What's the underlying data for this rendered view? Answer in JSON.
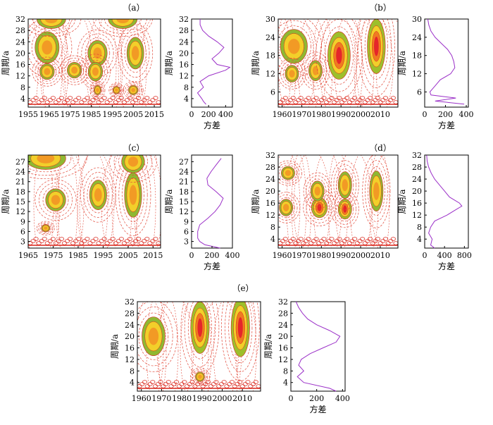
{
  "chart_data": [
    {
      "type": "contour",
      "panel_label": "（a）",
      "ylabel": "周期/a",
      "x_ticks": [
        "1955",
        "1965",
        "1975",
        "1985",
        "1995",
        "2005",
        "2015"
      ],
      "y_ticks": [
        "4",
        "8",
        "12",
        "16",
        "20",
        "24",
        "28",
        "32"
      ],
      "x_range": [
        1955,
        2018
      ],
      "y_range": [
        1,
        32
      ],
      "blobs": [
        {
          "x": 1964,
          "y": 22,
          "w": 5,
          "h": 5,
          "level": 1.5
        },
        {
          "x": 1964,
          "y": 13.5,
          "w": 3,
          "h": 2.5,
          "level": 1.5
        },
        {
          "x": 1977,
          "y": 14,
          "w": 3,
          "h": 2.5,
          "level": 1.5
        },
        {
          "x": 1988,
          "y": 20,
          "w": 4,
          "h": 4,
          "level": 1.5
        },
        {
          "x": 1987,
          "y": 13.5,
          "w": 3,
          "h": 3,
          "level": 1.5
        },
        {
          "x": 1988,
          "y": 7,
          "w": 1.5,
          "h": 1.5,
          "level": 1.5
        },
        {
          "x": 1997,
          "y": 7,
          "w": 1.5,
          "h": 1.2,
          "level": 1.5
        },
        {
          "x": 2006,
          "y": 20,
          "w": 3.5,
          "h": 5,
          "level": 1.5
        },
        {
          "x": 2005,
          "y": 7,
          "w": 2,
          "h": 1.5,
          "level": 1.5
        },
        {
          "x": 1966,
          "y": 32,
          "w": 6,
          "h": 3,
          "level": 1.5
        },
        {
          "x": 2000,
          "y": 32,
          "w": 6,
          "h": 3,
          "level": 1.5
        }
      ],
      "variance": {
        "xlabel": "方差",
        "x_ticks": [
          "0",
          "200",
          "400"
        ],
        "x_range": [
          0,
          480
        ],
        "period": [
          2,
          3,
          4,
          6,
          8,
          10,
          12,
          14,
          15,
          16,
          18,
          20,
          22,
          24,
          26,
          28,
          30,
          32
        ],
        "value": [
          170,
          140,
          120,
          70,
          140,
          100,
          200,
          400,
          450,
          300,
          240,
          320,
          380,
          300,
          200,
          130,
          100,
          100
        ]
      }
    },
    {
      "type": "contour",
      "panel_label": "（b）",
      "ylabel": "周期/a",
      "x_ticks": [
        "1960",
        "1970",
        "1980",
        "1990",
        "2000",
        "2010"
      ],
      "y_ticks": [
        "6",
        "12",
        "18",
        "24",
        "30"
      ],
      "x_range": [
        1958,
        2019
      ],
      "y_range": [
        1,
        30
      ],
      "blobs": [
        {
          "x": 1966,
          "y": 21,
          "w": 6,
          "h": 5,
          "level": 1.5
        },
        {
          "x": 1965,
          "y": 12,
          "w": 3,
          "h": 2.5,
          "level": 1.5
        },
        {
          "x": 1977,
          "y": 13,
          "w": 3,
          "h": 3,
          "level": 1.5
        },
        {
          "x": 1989,
          "y": 18,
          "w": 5,
          "h": 7,
          "level": 2.5
        },
        {
          "x": 2008,
          "y": 21,
          "w": 4,
          "h": 8,
          "level": 2.5
        }
      ],
      "variance": {
        "xlabel": "方差",
        "x_ticks": [
          "0",
          "200",
          "400"
        ],
        "x_range": [
          0,
          420
        ],
        "period": [
          2,
          3,
          4,
          5,
          6,
          8,
          10,
          12,
          14,
          16,
          18,
          20,
          22,
          24,
          26,
          28,
          30
        ],
        "value": [
          380,
          100,
          300,
          60,
          50,
          100,
          150,
          250,
          290,
          280,
          260,
          220,
          160,
          100,
          60,
          40,
          30
        ]
      }
    },
    {
      "type": "contour",
      "panel_label": "（c）",
      "ylabel": "周期/a",
      "x_ticks": [
        "1965",
        "1975",
        "1985",
        "1995",
        "2005",
        "2015"
      ],
      "y_ticks": [
        "3",
        "6",
        "9",
        "12",
        "15",
        "18",
        "21",
        "24",
        "27"
      ],
      "x_range": [
        1965,
        2018
      ],
      "y_range": [
        1,
        29
      ],
      "blobs": [
        {
          "x": 1976,
          "y": 15.5,
          "w": 3.5,
          "h": 3,
          "level": 1.5
        },
        {
          "x": 1993,
          "y": 17,
          "w": 3,
          "h": 4,
          "level": 1.5
        },
        {
          "x": 2007,
          "y": 17,
          "w": 3,
          "h": 6,
          "level": 1.5
        },
        {
          "x": 1972,
          "y": 28,
          "w": 7,
          "h": 3,
          "level": 1.5
        },
        {
          "x": 2007,
          "y": 27,
          "w": 4,
          "h": 3,
          "level": 1.5
        },
        {
          "x": 1972,
          "y": 7,
          "w": 1.5,
          "h": 1,
          "level": 1.5
        }
      ],
      "variance": {
        "xlabel": "方差",
        "x_ticks": [
          "0",
          "200",
          "400"
        ],
        "x_range": [
          0,
          400
        ],
        "period": [
          1,
          2,
          3,
          4,
          6,
          8,
          10,
          12,
          14,
          16,
          18,
          20,
          22,
          24,
          26,
          28
        ],
        "value": [
          280,
          130,
          80,
          60,
          60,
          80,
          160,
          230,
          280,
          310,
          240,
          160,
          150,
          190,
          240,
          290
        ]
      }
    },
    {
      "type": "contour",
      "panel_label": "（d）",
      "ylabel": "周期/a",
      "x_ticks": [
        "1960",
        "1970",
        "1980",
        "1990",
        "2000",
        "2010"
      ],
      "y_ticks": [
        "4",
        "8",
        "12",
        "16",
        "20",
        "24",
        "28",
        "32"
      ],
      "x_range": [
        1958,
        2019
      ],
      "y_range": [
        1,
        32
      ],
      "blobs": [
        {
          "x": 1962,
          "y": 14.5,
          "w": 3,
          "h": 2.5,
          "level": 1.5
        },
        {
          "x": 1979,
          "y": 14.5,
          "w": 3.5,
          "h": 3,
          "level": 2.5
        },
        {
          "x": 1992,
          "y": 14,
          "w": 3,
          "h": 3,
          "level": 2.5
        },
        {
          "x": 1978,
          "y": 20,
          "w": 3,
          "h": 3,
          "level": 1.5
        },
        {
          "x": 1992,
          "y": 22,
          "w": 3,
          "h": 4,
          "level": 1.5
        },
        {
          "x": 2008,
          "y": 20,
          "w": 3,
          "h": 6,
          "level": 1.5
        },
        {
          "x": 1963,
          "y": 26,
          "w": 3,
          "h": 2,
          "level": 1.5
        }
      ],
      "variance": {
        "xlabel": "方差",
        "x_ticks": [
          "0",
          "400",
          "800"
        ],
        "x_range": [
          0,
          880
        ],
        "period": [
          1,
          2,
          4,
          6,
          8,
          10,
          12,
          14,
          15,
          16,
          18,
          20,
          22,
          24,
          26,
          28,
          30,
          32
        ],
        "value": [
          200,
          120,
          150,
          80,
          120,
          200,
          450,
          650,
          750,
          700,
          500,
          400,
          300,
          200,
          130,
          80,
          50,
          40
        ]
      }
    },
    {
      "type": "contour",
      "panel_label": "（e）",
      "ylabel": "周期/a",
      "x_ticks": [
        "1960",
        "1970",
        "1980",
        "1990",
        "2000",
        "2010"
      ],
      "y_ticks": [
        "4",
        "8",
        "12",
        "16",
        "20",
        "24",
        "28",
        "32"
      ],
      "x_range": [
        1958,
        2019
      ],
      "y_range": [
        1,
        32
      ],
      "blobs": [
        {
          "x": 1966,
          "y": 20,
          "w": 5,
          "h": 6,
          "level": 1.5
        },
        {
          "x": 1989,
          "y": 23,
          "w": 4,
          "h": 8,
          "level": 2.5
        },
        {
          "x": 2009,
          "y": 23,
          "w": 4,
          "h": 9,
          "level": 2.5
        },
        {
          "x": 1989,
          "y": 6,
          "w": 2,
          "h": 1.5,
          "level": 1.5
        }
      ],
      "variance": {
        "xlabel": "方差",
        "x_ticks": [
          "0",
          "200",
          "400"
        ],
        "x_range": [
          0,
          420
        ],
        "period": [
          1,
          2,
          4,
          6,
          8,
          10,
          12,
          14,
          16,
          18,
          20,
          22,
          24,
          26,
          28,
          30,
          32
        ],
        "value": [
          350,
          300,
          100,
          50,
          100,
          60,
          80,
          150,
          250,
          350,
          380,
          300,
          200,
          130,
          90,
          60,
          40
        ]
      }
    }
  ]
}
